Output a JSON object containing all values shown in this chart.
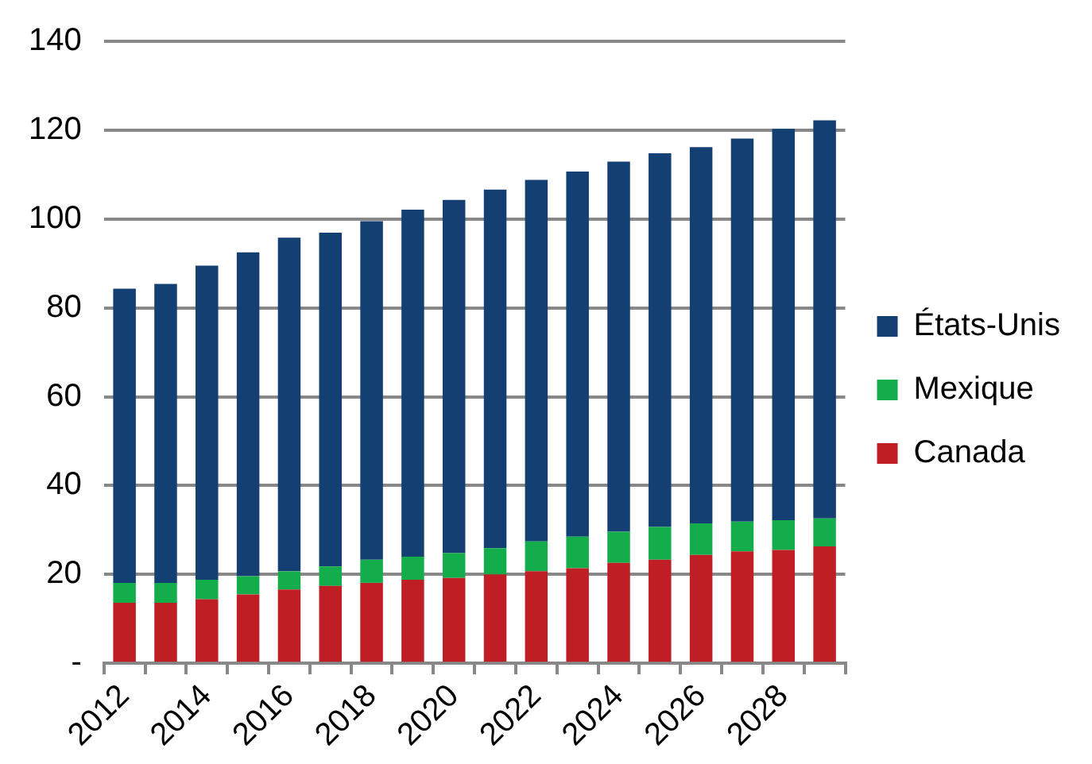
{
  "chart_data": {
    "type": "bar",
    "stacked": true,
    "categories": [
      "2012",
      null,
      "2014",
      null,
      "2016",
      null,
      "2018",
      null,
      "2020",
      null,
      "2022",
      null,
      "2024",
      null,
      "2026",
      null,
      "2028",
      null
    ],
    "series": [
      {
        "name": "Canada",
        "color": "#be1e24",
        "values": [
          13.6,
          13.6,
          14.4,
          15.5,
          16.6,
          17.4,
          18.1,
          18.8,
          19.2,
          20.0,
          20.7,
          21.4,
          22.6,
          23.3,
          24.4,
          25.2,
          25.5,
          26.3
        ]
      },
      {
        "name": "Mexique",
        "color": "#13ad4b",
        "values": [
          4.5,
          4.5,
          4.4,
          4.1,
          4.1,
          4.4,
          5.2,
          5.2,
          5.6,
          5.9,
          6.7,
          7.1,
          7.0,
          7.4,
          7.1,
          6.7,
          6.7,
          6.3
        ]
      },
      {
        "name": "États-Unis",
        "color": "#143f73",
        "values": [
          66.2,
          67.3,
          70.7,
          72.9,
          75.1,
          75.1,
          76.2,
          78.1,
          79.5,
          80.7,
          81.4,
          82.2,
          83.3,
          84.1,
          84.7,
          86.2,
          88.1,
          89.6
        ]
      }
    ],
    "ylim": [
      0,
      140
    ],
    "yticks": [
      {
        "value": 0,
        "label": "-"
      },
      20,
      40,
      60,
      80,
      100,
      120,
      140
    ],
    "grid": "y",
    "legend": "right"
  }
}
